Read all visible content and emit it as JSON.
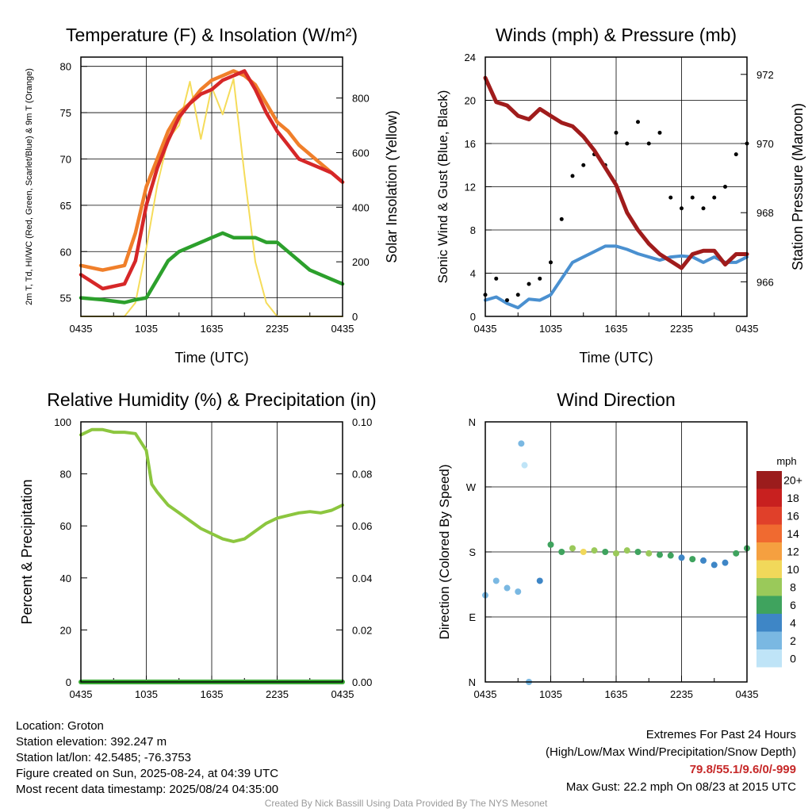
{
  "chart_data": [
    {
      "type": "line",
      "title": "Temperature (F) & Insolation (W/m²)",
      "xlabel": "Time (UTC)",
      "ylabel": "2m T, Td, HI/WC (Red, Green, Scarlet/Blue) & 9m T (Orange)",
      "ylabel_right": "Solar Insolation (Yellow)",
      "x_ticks": [
        "0435",
        "1035",
        "1635",
        "2235",
        "0435"
      ],
      "ylim": [
        53,
        81
      ],
      "y_ticks": [
        55,
        60,
        65,
        70,
        75,
        80
      ],
      "ylim_right": [
        0,
        950
      ],
      "y_ticks_right": [
        0,
        200,
        400,
        600,
        800
      ],
      "x_hours": [
        0,
        2,
        4,
        5,
        6,
        7,
        8,
        9,
        10,
        11,
        12,
        13,
        14,
        15,
        16,
        17,
        18,
        19,
        20,
        21,
        22,
        23,
        24
      ],
      "series": [
        {
          "color": "#2ca02c",
          "axis": "left",
          "values": [
            55,
            54.8,
            54.5,
            54.8,
            55,
            57,
            59,
            60,
            60.5,
            61,
            61.5,
            62,
            61.5,
            61.5,
            61.5,
            61,
            61,
            60,
            59,
            58,
            57.5,
            57,
            56.5
          ]
        },
        {
          "color": "#f07f2a",
          "axis": "left",
          "values": [
            58.5,
            58,
            58.5,
            62,
            67,
            70,
            73,
            75,
            76,
            77.5,
            78.5,
            79,
            79.5,
            79,
            78,
            76,
            74,
            73,
            71.5,
            70.5,
            69.5,
            68.5,
            67.5
          ]
        },
        {
          "color": "#d62728",
          "axis": "left",
          "values": [
            57.5,
            56,
            56.5,
            59,
            65,
            69,
            72,
            74.5,
            76,
            77,
            77.5,
            78.5,
            79,
            79.5,
            77.5,
            75,
            73,
            71.5,
            70,
            69.5,
            69,
            68.5,
            67.5
          ]
        },
        {
          "color": "#f5dc5a",
          "axis": "right",
          "values": [
            0,
            0,
            0,
            50,
            250,
            480,
            650,
            700,
            860,
            650,
            840,
            740,
            870,
            520,
            200,
            50,
            0,
            0,
            0,
            0,
            0,
            0,
            0
          ]
        }
      ]
    },
    {
      "type": "scatter",
      "title": "Winds (mph) & Pressure (mb)",
      "xlabel": "Time (UTC)",
      "ylabel": "Sonic Wind & Gust (Blue, Black)",
      "ylabel_right": "Station Pressure (Maroon)",
      "x_ticks": [
        "0435",
        "1035",
        "1635",
        "2235",
        "0435"
      ],
      "ylim": [
        0,
        24
      ],
      "y_ticks": [
        0,
        4,
        8,
        12,
        16,
        20,
        24
      ],
      "ylim_right": [
        965,
        972.5
      ],
      "y_ticks_right": [
        966,
        968,
        970,
        972
      ],
      "x_hours": [
        0,
        1,
        2,
        3,
        4,
        5,
        6,
        7,
        8,
        9,
        10,
        11,
        12,
        13,
        14,
        15,
        16,
        17,
        18,
        19,
        20,
        21,
        22,
        23,
        24
      ],
      "series": [
        {
          "color": "#4a90d0",
          "kind": "line",
          "axis": "left",
          "values": [
            1.5,
            1.8,
            1.2,
            0.8,
            1.6,
            1.5,
            2,
            3.5,
            5,
            5.5,
            6,
            6.5,
            6.5,
            6.2,
            5.8,
            5.5,
            5.2,
            5.5,
            5.6,
            5.5,
            5,
            5.5,
            5,
            5,
            5.5
          ]
        },
        {
          "color": "#000000",
          "kind": "dots",
          "axis": "left",
          "values": [
            2,
            3.5,
            1.5,
            2,
            3,
            3.5,
            5,
            9,
            13,
            14,
            15,
            14,
            17,
            16,
            18,
            16,
            17,
            11,
            10,
            11,
            10,
            11,
            12,
            15,
            16
          ]
        },
        {
          "color": "#a01c1c",
          "kind": "line",
          "axis": "right",
          "values": [
            971.9,
            971.2,
            971.1,
            970.8,
            970.7,
            971,
            970.8,
            970.6,
            970.5,
            970.2,
            969.8,
            969.3,
            968.8,
            968,
            967.5,
            967.1,
            966.8,
            966.6,
            966.4,
            966.8,
            966.9,
            966.9,
            966.5,
            966.8,
            966.8
          ]
        }
      ]
    },
    {
      "type": "line",
      "title": "Relative Humidity (%) & Precipitation (in)",
      "ylabel": "Percent & Precipitation",
      "x_ticks": [
        "0435",
        "1035",
        "1635",
        "2235",
        "0435"
      ],
      "ylim": [
        0,
        100
      ],
      "y_ticks": [
        0,
        20,
        40,
        60,
        80,
        100
      ],
      "ylim_right": [
        0,
        0.1
      ],
      "y_ticks_right": [
        "0.00",
        "0.02",
        "0.04",
        "0.06",
        "0.08",
        "0.10"
      ],
      "x_hours": [
        0,
        1,
        2,
        3,
        4,
        5,
        6,
        6.5,
        7,
        8,
        9,
        10,
        11,
        12,
        13,
        14,
        15,
        16,
        17,
        18,
        19,
        20,
        21,
        22,
        23,
        24
      ],
      "series": [
        {
          "color": "#8cc63f",
          "axis": "left",
          "values": [
            95,
            97,
            97,
            96,
            96,
            95.5,
            89,
            76,
            73,
            68,
            65,
            62,
            59,
            57,
            55,
            54,
            55,
            58,
            61,
            63,
            64,
            65,
            65.5,
            65,
            66,
            68
          ]
        },
        {
          "color": "#3aaa35",
          "axis": "right",
          "values": [
            0,
            0,
            0,
            0,
            0,
            0,
            0,
            0,
            0,
            0,
            0,
            0,
            0,
            0,
            0,
            0,
            0,
            0,
            0,
            0,
            0,
            0,
            0,
            0,
            0,
            0
          ]
        }
      ]
    },
    {
      "type": "scatter",
      "title": "Wind Direction",
      "ylabel": "Direction (Colored By Speed)",
      "x_ticks": [
        "0435",
        "1035",
        "1635",
        "2235",
        "0435"
      ],
      "y_ticks": [
        "N",
        "E",
        "S",
        "W",
        "N"
      ],
      "ylim": [
        0,
        360
      ],
      "x_hours": [
        0,
        1,
        2,
        3,
        3.3,
        3.6,
        4,
        5,
        6,
        7,
        8,
        9,
        10,
        11,
        12,
        13,
        14,
        15,
        16,
        17,
        18,
        19,
        20,
        21,
        22,
        23,
        24
      ],
      "directions": [
        120,
        140,
        130,
        125,
        330,
        300,
        0,
        140,
        190,
        180,
        185,
        180,
        182,
        180,
        178,
        182,
        180,
        178,
        176,
        175,
        172,
        170,
        168,
        162,
        165,
        178,
        185
      ],
      "speeds": [
        1,
        1,
        1,
        2,
        1,
        0,
        1,
        3,
        5,
        6,
        7,
        9,
        7,
        6,
        7,
        8,
        6,
        7,
        5,
        6,
        4,
        5,
        4,
        3,
        4,
        5,
        6
      ],
      "legend_title": "mph",
      "legend_labels": [
        "20+",
        "18",
        "16",
        "14",
        "12",
        "10",
        "8",
        "6",
        "4",
        "2",
        "0"
      ],
      "legend_colors": [
        "#9b1c1c",
        "#c8201f",
        "#e0402a",
        "#f06a30",
        "#f5a040",
        "#f1d85a",
        "#9ac95a",
        "#3fa35e",
        "#3e86c6",
        "#7ab8e2",
        "#bfe4f7"
      ]
    }
  ],
  "footer": {
    "location": "Location: Groton",
    "elevation": "Station elevation: 392.247 m",
    "latlon": "Station lat/lon: 42.5485; -76.3753",
    "created": "Figure created on Sun, 2025-08-24, at 04:39 UTC",
    "recent": "Most recent data timestamp: 2025/08/24 04:35:00",
    "extremes_title": "Extremes For Past 24 Hours",
    "extremes_subtitle": "(High/Low/Max Wind/Precipitation/Snow Depth)",
    "extremes_values": "79.8/55.1/9.6/0/-999",
    "max_gust": "Max Gust: 22.2 mph On 08/23 at 2015 UTC",
    "credit": "Created By Nick Bassill Using Data Provided By The NYS Mesonet"
  }
}
